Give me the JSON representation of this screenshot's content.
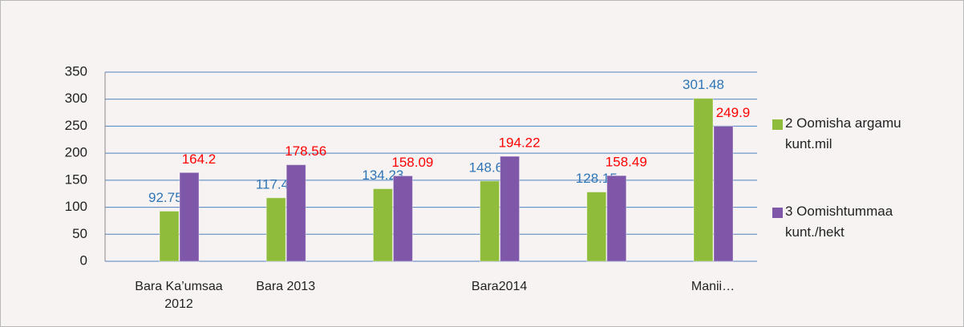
{
  "chart_data": {
    "type": "bar",
    "categories": [
      "Bara Ka’umsaa 2012",
      "Bara 2013",
      null,
      "Bara2014",
      null,
      "Manii…"
    ],
    "series": [
      {
        "name": "2 Oomisha argamu kunt.mil",
        "color": "#8fbc3a",
        "label_color": "#2e75b6",
        "values": [
          92.756,
          117.42,
          134.23,
          148.63,
          128.15,
          301.48
        ]
      },
      {
        "name": "3 Oomishtummaa kunt./hekt",
        "color": "#7e57a8",
        "label_color": "#ff0000",
        "values": [
          164.2,
          178.56,
          158.09,
          194.22,
          158.49,
          249.9
        ]
      }
    ],
    "ylim": [
      0,
      350
    ],
    "yticks": [
      0,
      50,
      100,
      150,
      200,
      250,
      300,
      350
    ],
    "grid": true,
    "legend": "right"
  }
}
